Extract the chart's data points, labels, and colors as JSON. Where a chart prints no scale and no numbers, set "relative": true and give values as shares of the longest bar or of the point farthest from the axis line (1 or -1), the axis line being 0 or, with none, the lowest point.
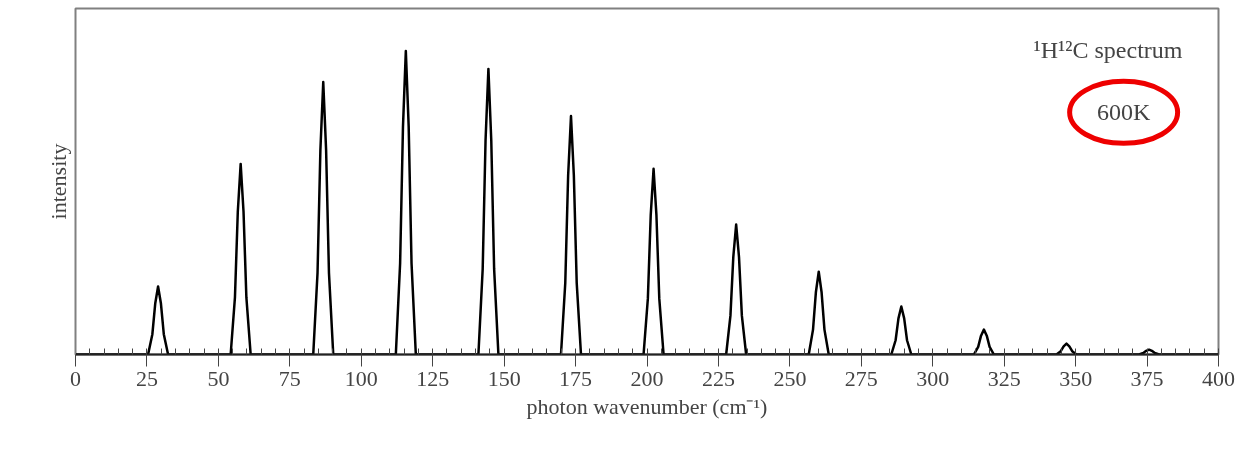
{
  "chart_data": {
    "type": "line",
    "relative": true,
    "xlabel": "photon wavenumber (cm⁻¹)",
    "ylabel": "intensity",
    "annotations": [
      "¹H¹²C spectrum",
      "600K"
    ],
    "xlim": [
      0,
      400
    ],
    "xticks": [
      0,
      25,
      50,
      75,
      100,
      125,
      150,
      175,
      200,
      225,
      250,
      275,
      300,
      325,
      350,
      375,
      400
    ],
    "grid": false,
    "marker": "none",
    "line_style": "solid",
    "series": [
      {
        "color": "#000000",
        "x": [
          0,
          25.4,
          26.9,
          27.9,
          28.9,
          29.9,
          30.9,
          32.4,
          54.3,
          55.8,
          56.8,
          57.8,
          58.8,
          59.8,
          61.3,
          83.2,
          84.7,
          85.7,
          86.7,
          87.7,
          88.7,
          90.2,
          112.1,
          113.6,
          114.6,
          115.6,
          116.6,
          117.6,
          119.1,
          141,
          142.5,
          143.5,
          144.5,
          145.5,
          146.5,
          148,
          169.9,
          171.4,
          172.4,
          173.4,
          174.4,
          175.4,
          176.9,
          198.8,
          200.3,
          201.3,
          202.3,
          203.3,
          204.3,
          205.8,
          227.7,
          229.2,
          230.2,
          231.2,
          232.2,
          233.2,
          234.7,
          256.6,
          258.1,
          259.1,
          260.1,
          261.1,
          262.1,
          263.6,
          285.5,
          287,
          288,
          289,
          290,
          291,
          292.5,
          314.4,
          315.9,
          316.9,
          317.9,
          318.9,
          319.9,
          321.4,
          343.3,
          344.8,
          345.8,
          346.8,
          347.8,
          348.8,
          350.3,
          372.2,
          373.7,
          374.7,
          375.7,
          376.7,
          377.7,
          379.2,
          400
        ],
        "values": [
          0,
          0,
          0.067,
          0.168,
          0.224,
          0.168,
          0.067,
          0,
          0,
          0.188,
          0.471,
          0.628,
          0.471,
          0.188,
          0,
          0,
          0.269,
          0.674,
          0.898,
          0.674,
          0.269,
          0,
          0,
          0.3,
          0.75,
          1,
          0.75,
          0.3,
          0,
          0,
          0.282,
          0.706,
          0.941,
          0.706,
          0.282,
          0,
          0,
          0.236,
          0.59,
          0.786,
          0.59,
          0.236,
          0,
          0,
          0.184,
          0.459,
          0.612,
          0.459,
          0.184,
          0,
          0,
          0.128,
          0.321,
          0.428,
          0.321,
          0.128,
          0,
          0,
          0.082,
          0.205,
          0.273,
          0.205,
          0.082,
          0,
          0,
          0.047,
          0.119,
          0.158,
          0.119,
          0.047,
          0,
          0,
          0.025,
          0.062,
          0.082,
          0.062,
          0.025,
          0,
          0,
          0.011,
          0.027,
          0.036,
          0.027,
          0.011,
          0,
          0,
          0.005,
          0.012,
          0.016,
          0.012,
          0.005,
          0,
          0
        ]
      }
    ]
  }
}
